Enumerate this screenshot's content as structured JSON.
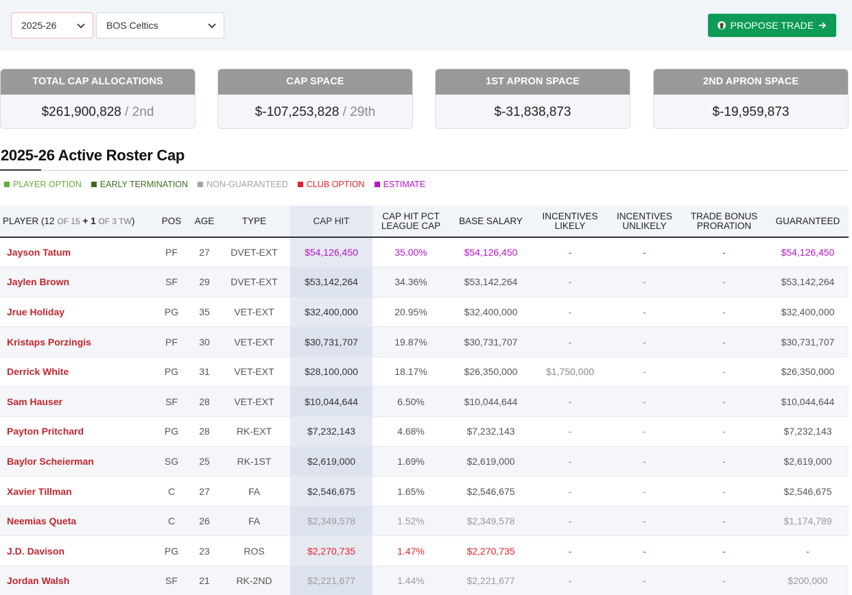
{
  "toolbar": {
    "season": "2025-26",
    "team": "BOS Celtics",
    "propose_trade": "PROPOSE TRADE"
  },
  "stats": [
    {
      "label": "TOTAL CAP ALLOCATIONS",
      "value": "$261,900,828",
      "rank": "/ 2nd"
    },
    {
      "label": "CAP SPACE",
      "value": "$-107,253,828",
      "rank": "/ 29th"
    },
    {
      "label": "1ST APRON SPACE",
      "value": "$-31,838,873",
      "rank": ""
    },
    {
      "label": "2ND APRON SPACE",
      "value": "$-19,959,873",
      "rank": ""
    }
  ],
  "section_title": "2025-26 Active Roster Cap",
  "legend": [
    {
      "label": "PLAYER OPTION",
      "color": "#5fae32"
    },
    {
      "label": "EARLY TERMINATION",
      "color": "#3f6b1e"
    },
    {
      "label": "NON-GUARANTEED",
      "color": "#a3a3a3"
    },
    {
      "label": "CLUB OPTION",
      "color": "#e5232b"
    },
    {
      "label": "ESTIMATE",
      "color": "#b515c8"
    }
  ],
  "table": {
    "headers": {
      "player_prefix": "PLAYER (12",
      "player_of1": "OF 15",
      "player_plus": "+ 1",
      "player_of2": "OF 3 TW",
      "player_close": ")",
      "pos": "POS",
      "age": "AGE",
      "type": "TYPE",
      "cap_hit": "CAP HIT",
      "cap_hit_pct_1": "CAP HIT PCT",
      "cap_hit_pct_2": "LEAGUE CAP",
      "base_salary": "BASE SALARY",
      "inc_likely_1": "INCENTIVES",
      "inc_likely_2": "LIKELY",
      "inc_unlikely_1": "INCENTIVES",
      "inc_unlikely_2": "UNLIKELY",
      "trade_bonus_1": "TRADE BONUS",
      "trade_bonus_2": "PRORATION",
      "guaranteed": "GUARANTEED"
    },
    "rows": [
      {
        "player": "Jayson Tatum",
        "pos": "PF",
        "age": "27",
        "type": "DVET-EXT",
        "cap_hit": "$54,126,450",
        "pct": "35.00%",
        "base": "$54,126,450",
        "likely": "-",
        "unlikely": "-",
        "bonus": "-",
        "guaranteed": "$54,126,450",
        "style": "purple"
      },
      {
        "player": "Jaylen Brown",
        "pos": "SF",
        "age": "29",
        "type": "DVET-EXT",
        "cap_hit": "$53,142,264",
        "pct": "34.36%",
        "base": "$53,142,264",
        "likely": "-",
        "unlikely": "-",
        "bonus": "-",
        "guaranteed": "$53,142,264",
        "style": ""
      },
      {
        "player": "Jrue Holiday",
        "pos": "PG",
        "age": "35",
        "type": "VET-EXT",
        "cap_hit": "$32,400,000",
        "pct": "20.95%",
        "base": "$32,400,000",
        "likely": "-",
        "unlikely": "-",
        "bonus": "-",
        "guaranteed": "$32,400,000",
        "style": ""
      },
      {
        "player": "Kristaps Porzingis",
        "pos": "PF",
        "age": "30",
        "type": "VET-EXT",
        "cap_hit": "$30,731,707",
        "pct": "19.87%",
        "base": "$30,731,707",
        "likely": "-",
        "unlikely": "-",
        "bonus": "-",
        "guaranteed": "$30,731,707",
        "style": ""
      },
      {
        "player": "Derrick White",
        "pos": "PG",
        "age": "31",
        "type": "VET-EXT",
        "cap_hit": "$28,100,000",
        "pct": "18.17%",
        "base": "$26,350,000",
        "likely": "$1,750,000",
        "unlikely": "-",
        "bonus": "-",
        "guaranteed": "$26,350,000",
        "style": ""
      },
      {
        "player": "Sam Hauser",
        "pos": "SF",
        "age": "28",
        "type": "VET-EXT",
        "cap_hit": "$10,044,644",
        "pct": "6.50%",
        "base": "$10,044,644",
        "likely": "-",
        "unlikely": "-",
        "bonus": "-",
        "guaranteed": "$10,044,644",
        "style": ""
      },
      {
        "player": "Payton Pritchard",
        "pos": "PG",
        "age": "28",
        "type": "RK-EXT",
        "cap_hit": "$7,232,143",
        "pct": "4.68%",
        "base": "$7,232,143",
        "likely": "-",
        "unlikely": "-",
        "bonus": "-",
        "guaranteed": "$7,232,143",
        "style": ""
      },
      {
        "player": "Baylor Scheierman",
        "pos": "SG",
        "age": "25",
        "type": "RK-1ST",
        "cap_hit": "$2,619,000",
        "pct": "1.69%",
        "base": "$2,619,000",
        "likely": "-",
        "unlikely": "-",
        "bonus": "-",
        "guaranteed": "$2,619,000",
        "style": ""
      },
      {
        "player": "Xavier Tillman",
        "pos": "C",
        "age": "27",
        "type": "FA",
        "cap_hit": "$2,546,675",
        "pct": "1.65%",
        "base": "$2,546,675",
        "likely": "-",
        "unlikely": "-",
        "bonus": "-",
        "guaranteed": "$2,546,675",
        "style": ""
      },
      {
        "player": "Neemias Queta",
        "pos": "C",
        "age": "26",
        "type": "FA",
        "cap_hit": "$2,349,578",
        "pct": "1.52%",
        "base": "$2,349,578",
        "likely": "-",
        "unlikely": "-",
        "bonus": "-",
        "guaranteed": "$1,174,789",
        "style": "grey"
      },
      {
        "player": "J.D. Davison",
        "pos": "PG",
        "age": "23",
        "type": "ROS",
        "cap_hit": "$2,270,735",
        "pct": "1.47%",
        "base": "$2,270,735",
        "likely": "-",
        "unlikely": "-",
        "bonus": "-",
        "guaranteed": "-",
        "style": "red"
      },
      {
        "player": "Jordan Walsh",
        "pos": "SF",
        "age": "21",
        "type": "RK-2ND",
        "cap_hit": "$2,221,677",
        "pct": "1.44%",
        "base": "$2,221,677",
        "likely": "-",
        "unlikely": "-",
        "bonus": "-",
        "guaranteed": "$200,000",
        "style": "grey"
      }
    ]
  }
}
